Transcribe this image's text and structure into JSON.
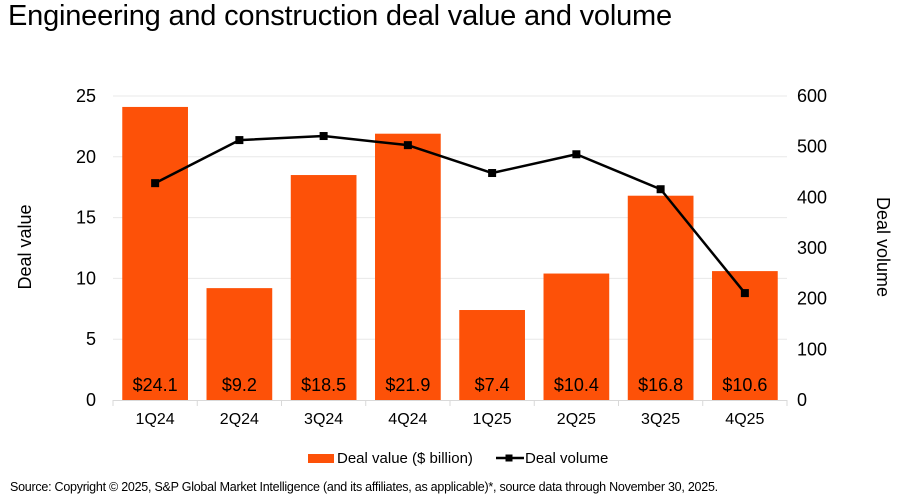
{
  "title": "Engineering and construction deal value and volume",
  "source": "Source: Copyright © 2025, S&P Global Market Intelligence (and its affiliates, as applicable)*, source data through November 30, 2025.",
  "colors": {
    "bar": "#FD5108",
    "line": "#000000",
    "grid": "#E8E8E8",
    "axis": "#D9D9D9"
  },
  "chart_data": {
    "type": "bar",
    "title": "Engineering and construction deal value and volume",
    "categories": [
      "1Q24",
      "2Q24",
      "3Q24",
      "4Q24",
      "1Q25",
      "2Q25",
      "3Q25",
      "4Q25"
    ],
    "series": [
      {
        "name": "Deal value ($ billion)",
        "type": "bar",
        "axis": "left",
        "values": [
          24.1,
          9.2,
          18.5,
          21.9,
          7.4,
          10.4,
          16.8,
          10.6
        ],
        "data_labels": [
          "$24.1",
          "$9.2",
          "$18.5",
          "$21.9",
          "$7.4",
          "$10.4",
          "$16.8",
          "$10.6"
        ]
      },
      {
        "name": "Deal volume",
        "type": "line",
        "axis": "right",
        "marker": "square",
        "values": [
          428,
          513,
          521,
          503,
          448,
          485,
          416,
          211
        ]
      }
    ],
    "ylabel": "Deal value",
    "ylim": [
      0,
      25
    ],
    "yticks": [
      "0",
      "5",
      "10",
      "15",
      "20",
      "25"
    ],
    "y2label": "Deal volume",
    "y2lim": [
      0,
      600
    ],
    "y2ticks": [
      "0",
      "100",
      "200",
      "300",
      "400",
      "500",
      "600"
    ],
    "xlabel": "",
    "grid": true,
    "legend": {
      "position": "bottom",
      "entries": [
        "Deal value ($ billion)",
        "Deal volume"
      ]
    }
  }
}
